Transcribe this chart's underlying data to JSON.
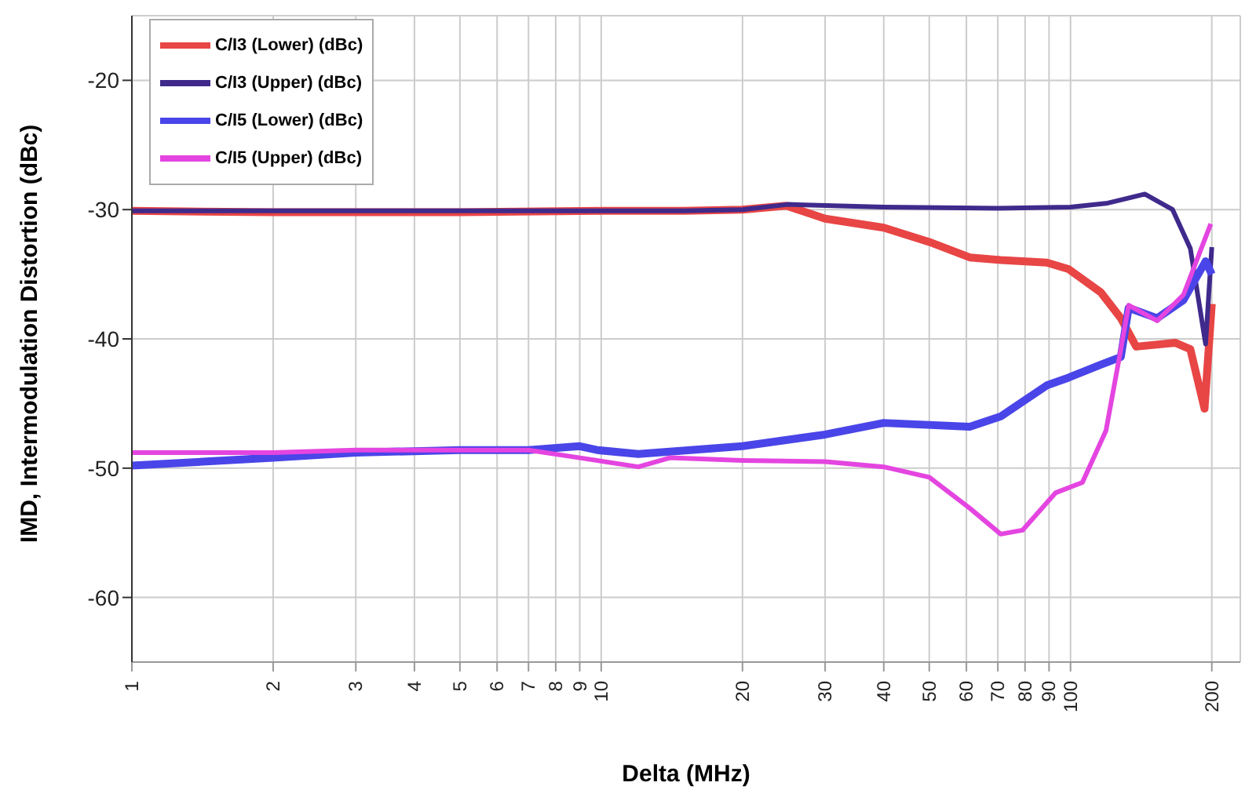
{
  "chart_data": {
    "type": "line",
    "xlabel": "Delta (MHz)",
    "ylabel": "IMD, Intermodulation Distortion (dBc)",
    "log": "x",
    "xlim": [
      1,
      230
    ],
    "ylim": [
      -65,
      -15
    ],
    "xticks": [
      1,
      2,
      3,
      4,
      5,
      6,
      7,
      8,
      9,
      10,
      20,
      30,
      40,
      50,
      60,
      70,
      80,
      90,
      100,
      200
    ],
    "yticks": [
      -60,
      -50,
      -40,
      -30,
      -20
    ],
    "grid": true,
    "legend": "top left",
    "marker": "none",
    "line_style": "solid",
    "series": [
      {
        "name": "C/I3 (Lower) (dBc)",
        "color": "#e84545",
        "x": [
          1,
          2,
          5,
          10,
          15,
          20,
          24.8,
          30,
          40,
          50,
          61,
          71,
          89,
          99,
          116,
          128,
          138,
          167,
          180,
          193,
          200
        ],
        "values": [
          -30.1,
          -30.2,
          -30.2,
          -30.1,
          -30.1,
          -30.0,
          -29.7,
          -30.7,
          -31.4,
          -32.5,
          -33.7,
          -33.9,
          -34.1,
          -34.6,
          -36.4,
          -38.4,
          -40.6,
          -40.3,
          -40.8,
          -45.4,
          -37.3
        ]
      },
      {
        "name": "C/I3 (Upper) (dBc)",
        "color": "#3f2a8c",
        "x": [
          1,
          2,
          5,
          10,
          15,
          20,
          25,
          40,
          70,
          100,
          120,
          144,
          165,
          180,
          194,
          200
        ],
        "values": [
          -30.1,
          -30.1,
          -30.1,
          -30.1,
          -30.1,
          -30.0,
          -29.6,
          -29.8,
          -29.9,
          -29.8,
          -29.5,
          -28.8,
          -30.0,
          -33.0,
          -40.4,
          -32.9
        ]
      },
      {
        "name": "C/I5 (Lower) (dBc)",
        "color": "#4a45e8",
        "x": [
          1,
          2,
          3,
          5,
          7,
          9,
          9.8,
          12,
          20,
          30,
          40,
          61,
          71,
          89,
          99,
          116,
          128,
          133,
          153,
          174,
          194,
          200
        ],
        "values": [
          -49.8,
          -49.2,
          -48.8,
          -48.6,
          -48.6,
          -48.3,
          -48.6,
          -48.9,
          -48.3,
          -47.4,
          -46.5,
          -46.8,
          -46.0,
          -43.6,
          -43.0,
          -42.0,
          -41.4,
          -37.6,
          -38.4,
          -37.0,
          -34.0,
          -35.0
        ]
      },
      {
        "name": "C/I5 (Upper) (dBc)",
        "color": "#e445e0",
        "x": [
          1,
          2,
          3,
          5,
          7,
          9,
          12,
          14,
          20,
          30,
          40,
          50,
          61,
          71,
          79,
          93,
          106,
          119,
          128,
          133,
          153,
          174,
          199
        ],
        "values": [
          -48.8,
          -48.8,
          -48.6,
          -48.6,
          -48.6,
          -49.2,
          -49.9,
          -49.2,
          -49.4,
          -49.5,
          -49.9,
          -50.7,
          -53.1,
          -55.1,
          -54.8,
          -51.9,
          -51.1,
          -47.1,
          -40.8,
          -37.4,
          -38.6,
          -36.6,
          -31.1
        ]
      }
    ]
  }
}
